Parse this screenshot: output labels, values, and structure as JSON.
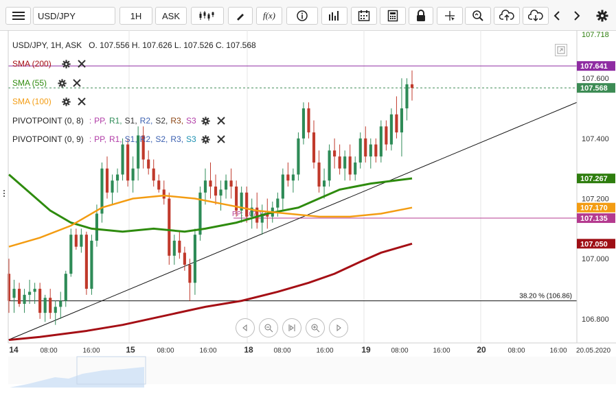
{
  "toolbar": {
    "symbol": "USD/JPY",
    "interval": "1H",
    "price_type": "ASK",
    "fx_label": "f(x)",
    "buttons": [
      "menu-icon",
      "candles-icon",
      "draw-icon",
      "fx-icon",
      "info-icon",
      "bars-icon",
      "calendar-icon",
      "calculator-icon",
      "lock-icon",
      "crosshair-icon",
      "zoom-icon",
      "cloud-upload-icon",
      "cloud-download-icon",
      "prev-icon",
      "next-icon",
      "gear-icon"
    ]
  },
  "header": {
    "ohlc": "USD/JPY, 1H, ASK   O. 107.556 H. 107.626 L. 107.526 C. 107.568"
  },
  "legend": {
    "sma200": "SMA (200)",
    "sma55": "SMA (55)",
    "sma100": "SMA (100)",
    "pivot1_name": "PIVOTPOINT (0, 8)",
    "pivot2_name": "PIVOTPOINT (0, 9)",
    "pivot_sep": ":",
    "pivot_levels": [
      "PP,",
      "R1,",
      "S1,",
      "R2,",
      "S2,",
      "R3,",
      "S3"
    ]
  },
  "colors": {
    "up": "#2e8b57",
    "down": "#c0392b",
    "sma200": "#a50f15",
    "sma55": "#2e8b0e",
    "sma100": "#f39c12",
    "pivot": "#b03aa6",
    "grid": "#e6e6e6"
  },
  "price_axis": {
    "ticks": [
      "107.600",
      "107.400",
      "107.200",
      "107.000",
      "106.800"
    ],
    "top_partial": "107.718"
  },
  "price_badges": [
    {
      "label": "107.641",
      "color": "#8e2ba2"
    },
    {
      "label": "107.568",
      "color": "#3c8b54"
    },
    {
      "label": "107.267",
      "color": "#2e7d0e"
    },
    {
      "label": "107.170",
      "color": "#f39c12"
    },
    {
      "label": "107.135",
      "color": "#b43a8f"
    },
    {
      "label": "107.050",
      "color": "#9e0f15"
    }
  ],
  "time_axis": {
    "labels": [
      "14",
      "08:00",
      "16:00",
      "15",
      "08:00",
      "16:00",
      "18",
      "08:00",
      "16:00",
      "19",
      "08:00",
      "16:00",
      "20",
      "08:00",
      "16:00",
      "20.05.2020"
    ]
  },
  "annotations": {
    "fib": "38.20 % (106.86)",
    "pp": "PP: 107.13"
  },
  "nav": [
    "prev",
    "zoom-out",
    "fit",
    "zoom-in",
    "next"
  ],
  "chart_data": {
    "type": "candlestick",
    "title": "USD/JPY, 1H, ASK",
    "ylim": [
      106.72,
      107.76
    ],
    "series": [
      {
        "name": "SMA (200)",
        "last": 107.05
      },
      {
        "name": "SMA (55)",
        "last": 107.267
      },
      {
        "name": "SMA (100)",
        "last": 107.17
      }
    ],
    "last_close": 107.568,
    "fib_level": 106.86,
    "pivot_pp": 107.135
  }
}
